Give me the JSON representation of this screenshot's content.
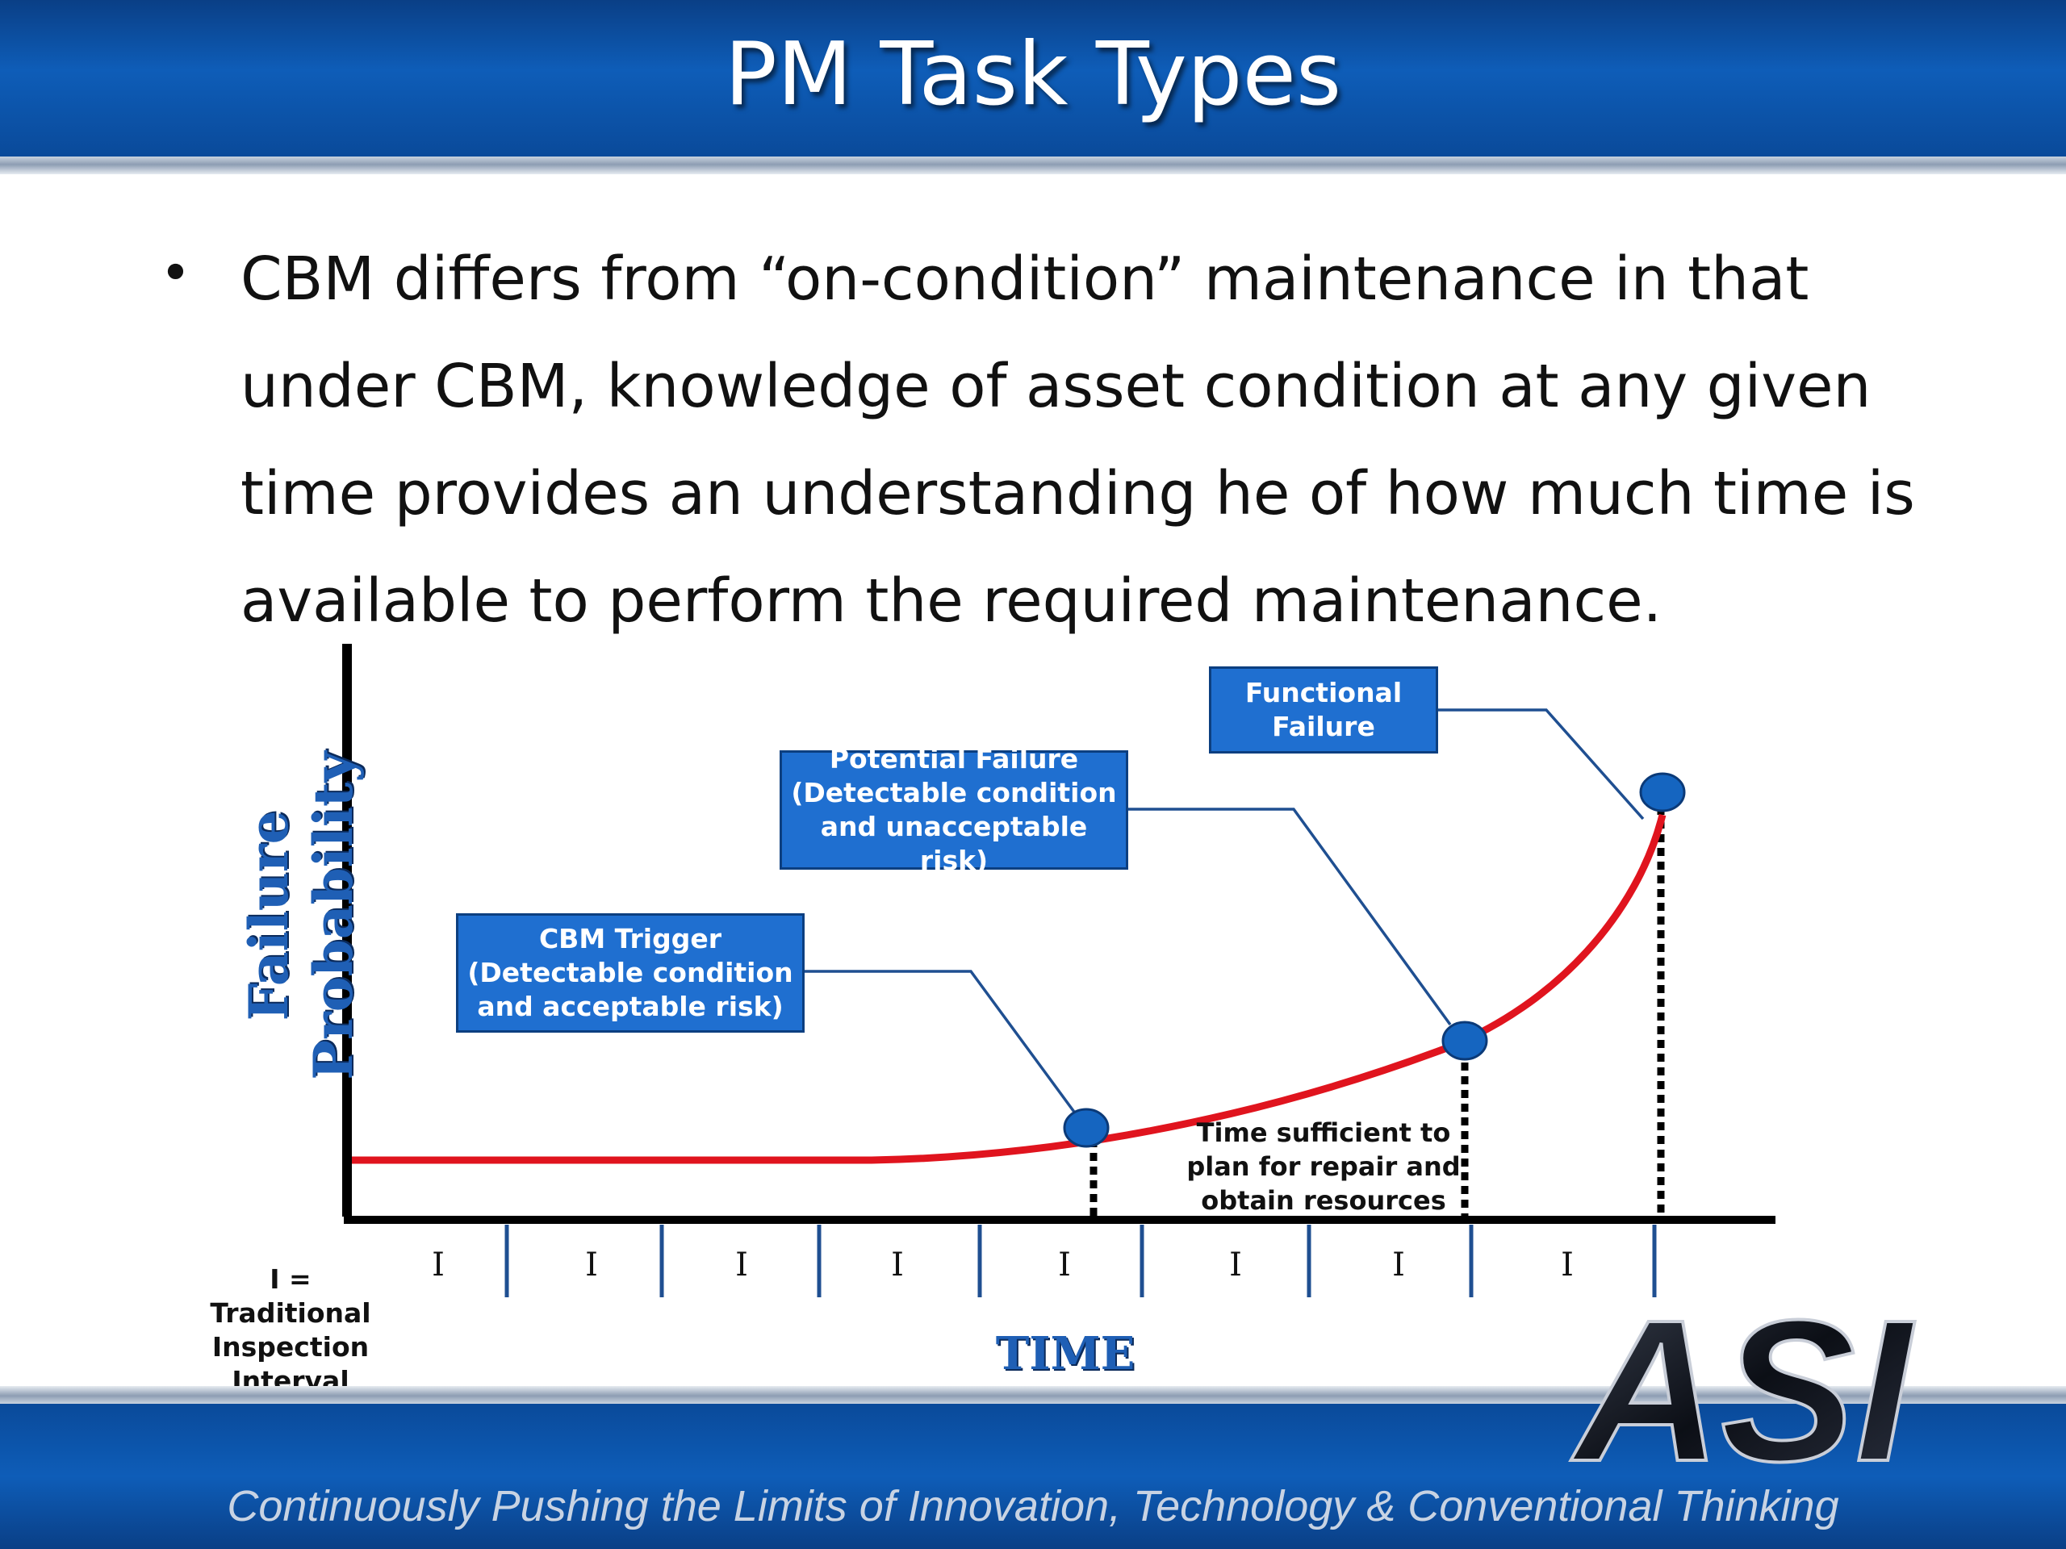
{
  "slide": {
    "title": "PM Task Types",
    "bullet_char": "•",
    "body": "CBM differs from “on-condition” maintenance in that under CBM, knowledge of asset condition at any given time provides an understanding he of how much time is available to perform the required maintenance.",
    "tagline": "Continuously Pushing the Limits of  Innovation, Technology & Conventional Thinking",
    "logo_text": "ASI"
  },
  "diagram": {
    "y_axis_label": "Failure Probability",
    "x_axis_label": "TIME",
    "callouts": {
      "functional_failure": "Functional\nFailure",
      "potential_failure": "Potential Failure\n(Detectable condition\nand unacceptable risk)",
      "cbm_trigger": "CBM Trigger\n(Detectable condition\nand acceptable risk)"
    },
    "time_note": "Time sufficient  to\nplan for repair and\nobtain resources",
    "interval_note": "I = Traditional\nInspection\nInterval",
    "interval_marks": [
      "I",
      "I",
      "I",
      "I",
      "I",
      "I",
      "I",
      "I"
    ],
    "colors": {
      "curve": "#e0141e",
      "callout_fill": "#1f6fd0",
      "point_fill": "#1565c0",
      "header_blue": "#0e5db8"
    }
  }
}
